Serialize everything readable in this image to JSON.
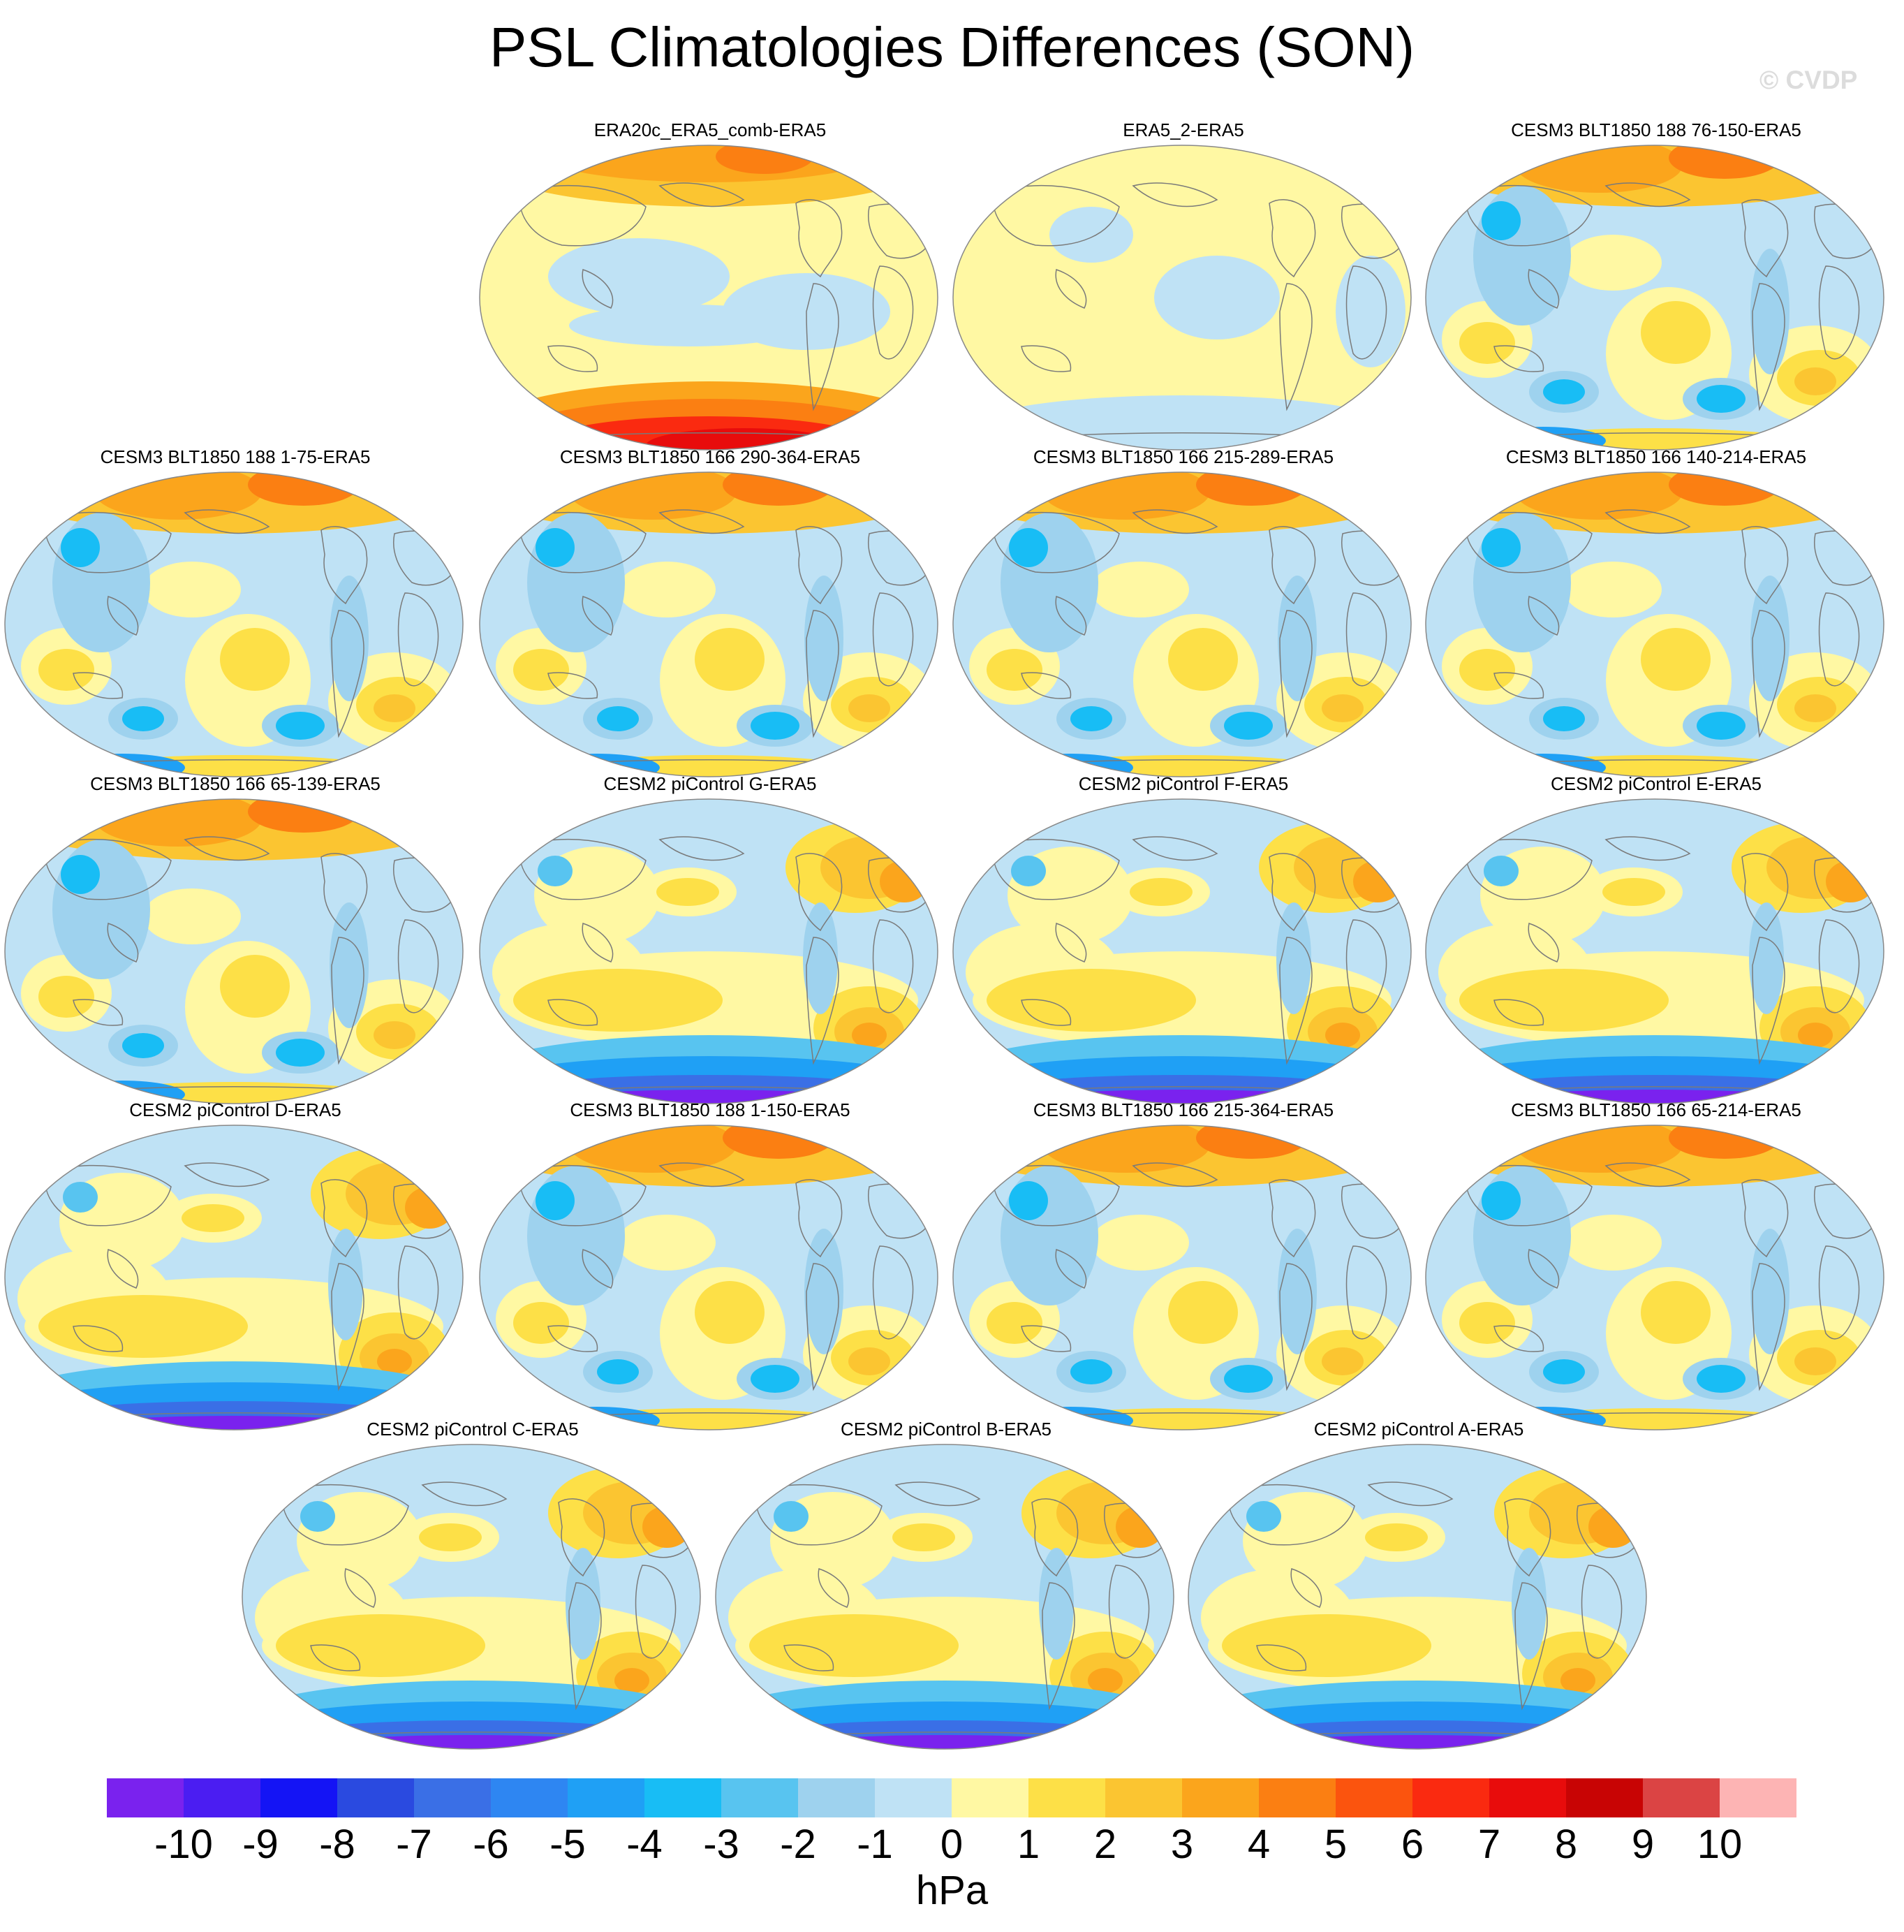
{
  "title": "PSL Climatologies Differences (SON)",
  "watermark": "© CVDP",
  "panels": [
    {
      "label": "ERA20c_ERA5_comb-ERA5",
      "pattern": "reanalysis-era20c"
    },
    {
      "label": "ERA5_2-ERA5",
      "pattern": "reanalysis-era5"
    },
    {
      "label": "CESM3 BLT1850 188 76-150-ERA5",
      "pattern": "cesm3"
    },
    {
      "label": "CESM3 BLT1850 188 1-75-ERA5",
      "pattern": "cesm3"
    },
    {
      "label": "CESM3 BLT1850 166 290-364-ERA5",
      "pattern": "cesm3"
    },
    {
      "label": "CESM3 BLT1850 166 215-289-ERA5",
      "pattern": "cesm3"
    },
    {
      "label": "CESM3 BLT1850 166 140-214-ERA5",
      "pattern": "cesm3"
    },
    {
      "label": "CESM3 BLT1850 166 65-139-ERA5",
      "pattern": "cesm3"
    },
    {
      "label": "CESM2 piControl G-ERA5",
      "pattern": "cesm2"
    },
    {
      "label": "CESM2 piControl F-ERA5",
      "pattern": "cesm2"
    },
    {
      "label": "CESM2 piControl E-ERA5",
      "pattern": "cesm2"
    },
    {
      "label": "CESM2 piControl D-ERA5",
      "pattern": "cesm2"
    },
    {
      "label": "CESM3 BLT1850 188 1-150-ERA5",
      "pattern": "cesm3"
    },
    {
      "label": "CESM3 BLT1850 166 215-364-ERA5",
      "pattern": "cesm3"
    },
    {
      "label": "CESM3 BLT1850 166 65-214-ERA5",
      "pattern": "cesm3"
    },
    {
      "label": "CESM2 piControl C-ERA5",
      "pattern": "cesm2"
    },
    {
      "label": "CESM2 piControl B-ERA5",
      "pattern": "cesm2"
    },
    {
      "label": "CESM2 piControl A-ERA5",
      "pattern": "cesm2"
    }
  ],
  "colorbar": {
    "units": "hPa",
    "tick_labels": [
      "-10",
      "-9",
      "-8",
      "-7",
      "-6",
      "-5",
      "-4",
      "-3",
      "-2",
      "-1",
      "0",
      "1",
      "2",
      "3",
      "4",
      "5",
      "6",
      "7",
      "8",
      "9",
      "10"
    ],
    "colors": [
      "#7a22ee",
      "#4b1df2",
      "#1414f5",
      "#2a4ae0",
      "#3a6fe6",
      "#2e86f2",
      "#1fa0f5",
      "#18bdf5",
      "#58c4f0",
      "#9ed2ee",
      "#bfe2f5",
      "#fff8a3",
      "#fde047",
      "#fbc531",
      "#fba51c",
      "#fb7f12",
      "#fb540e",
      "#fa2a10",
      "#e80c0c",
      "#c80404",
      "#db4444",
      "#fdb4b4"
    ]
  }
}
